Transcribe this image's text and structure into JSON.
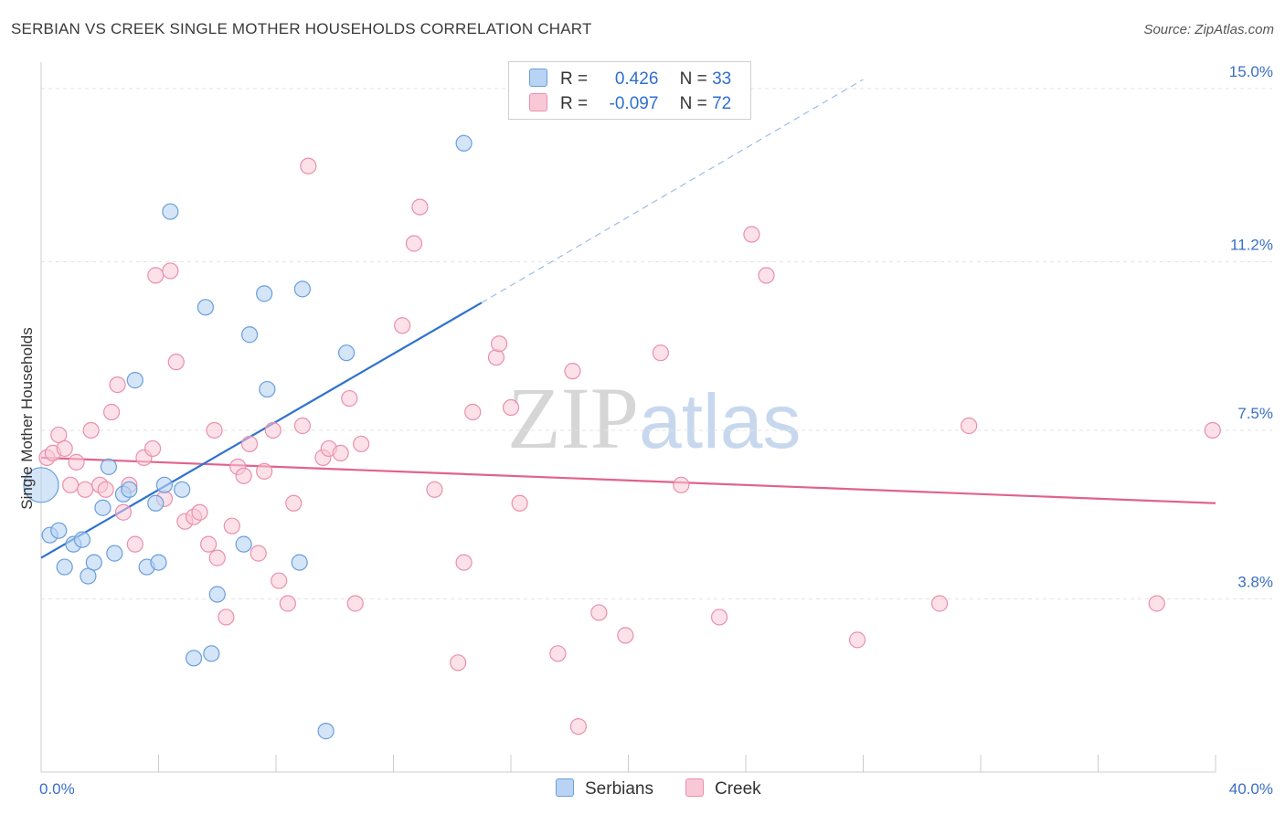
{
  "header": {
    "title": "SERBIAN VS CREEK SINGLE MOTHER HOUSEHOLDS CORRELATION CHART",
    "source": "Source: ZipAtlas.com"
  },
  "watermark": {
    "zip": "ZIP",
    "atlas": "atlas"
  },
  "colors": {
    "serbians_fill": "#b8d3f3",
    "serbians_stroke": "#6a9edc",
    "serbians_line": "#2f72cf",
    "creek_fill": "#f9c8d7",
    "creek_stroke": "#ea8fae",
    "creek_line": "#e0628f"
  },
  "legend": {
    "rows": [
      {
        "r_label": "R =",
        "r_value": " 0.426",
        "n_label": "N =",
        "n_value": "33"
      },
      {
        "r_label": "R =",
        "r_value": "-0.097",
        "n_label": "N =",
        "n_value": "72"
      }
    ]
  },
  "bottom_legend": [
    "Serbians",
    "Creek"
  ],
  "chart_data": {
    "type": "scatter",
    "title": "SERBIAN VS CREEK SINGLE MOTHER HOUSEHOLDS CORRELATION CHART",
    "xlabel": "",
    "ylabel": "Single Mother Households",
    "xlim": [
      0,
      40
    ],
    "ylim": [
      0,
      15.5
    ],
    "x_tick_labels": [
      "0.0%",
      "40.0%"
    ],
    "y_ticks": [
      3.8,
      7.5,
      11.2,
      15.0
    ],
    "y_tick_labels": [
      "3.8%",
      "7.5%",
      "11.2%",
      "15.0%"
    ],
    "grid": "horizontal dashed",
    "legend_position": "top-center",
    "series": [
      {
        "name": "Serbians",
        "r": 0.426,
        "n": 33,
        "trend": {
          "x0": 0,
          "y0": 4.7,
          "x1": 15,
          "y1": 10.3,
          "extend_to_x": 28,
          "extend_to_y": 15.2
        },
        "points": [
          [
            0.0,
            6.3
          ],
          [
            0.3,
            5.2
          ],
          [
            0.6,
            5.3
          ],
          [
            0.8,
            4.5
          ],
          [
            1.1,
            5.0
          ],
          [
            1.4,
            5.1
          ],
          [
            1.6,
            4.3
          ],
          [
            1.8,
            4.6
          ],
          [
            2.1,
            5.8
          ],
          [
            2.3,
            6.7
          ],
          [
            2.5,
            4.8
          ],
          [
            2.8,
            6.1
          ],
          [
            3.0,
            6.2
          ],
          [
            3.2,
            8.6
          ],
          [
            3.6,
            4.5
          ],
          [
            3.9,
            5.9
          ],
          [
            4.0,
            4.6
          ],
          [
            4.2,
            6.3
          ],
          [
            4.4,
            12.3
          ],
          [
            4.8,
            6.2
          ],
          [
            5.2,
            2.5
          ],
          [
            5.6,
            10.2
          ],
          [
            5.8,
            2.6
          ],
          [
            6.0,
            3.9
          ],
          [
            6.9,
            5.0
          ],
          [
            7.1,
            9.6
          ],
          [
            7.6,
            10.5
          ],
          [
            7.7,
            8.4
          ],
          [
            8.8,
            4.6
          ],
          [
            8.9,
            10.6
          ],
          [
            9.7,
            0.9
          ],
          [
            10.4,
            9.2
          ],
          [
            14.4,
            13.8
          ]
        ]
      },
      {
        "name": "Creek",
        "r": -0.097,
        "n": 72,
        "trend": {
          "x0": 0,
          "y0": 6.9,
          "x1": 40,
          "y1": 5.9
        },
        "points": [
          [
            0.2,
            6.9
          ],
          [
            0.4,
            7.0
          ],
          [
            0.6,
            7.4
          ],
          [
            0.8,
            7.1
          ],
          [
            1.0,
            6.3
          ],
          [
            1.2,
            6.8
          ],
          [
            1.5,
            6.2
          ],
          [
            1.7,
            7.5
          ],
          [
            2.0,
            6.3
          ],
          [
            2.2,
            6.2
          ],
          [
            2.4,
            7.9
          ],
          [
            2.6,
            8.5
          ],
          [
            2.8,
            5.7
          ],
          [
            3.0,
            6.3
          ],
          [
            3.2,
            5.0
          ],
          [
            3.5,
            6.9
          ],
          [
            3.8,
            7.1
          ],
          [
            3.9,
            10.9
          ],
          [
            4.2,
            6.0
          ],
          [
            4.4,
            11.0
          ],
          [
            4.6,
            9.0
          ],
          [
            4.9,
            5.5
          ],
          [
            5.2,
            5.6
          ],
          [
            5.4,
            5.7
          ],
          [
            5.7,
            5.0
          ],
          [
            5.9,
            7.5
          ],
          [
            6.0,
            4.7
          ],
          [
            6.3,
            3.4
          ],
          [
            6.5,
            5.4
          ],
          [
            6.7,
            6.7
          ],
          [
            6.9,
            6.5
          ],
          [
            7.1,
            7.2
          ],
          [
            7.4,
            4.8
          ],
          [
            7.6,
            6.6
          ],
          [
            7.9,
            7.5
          ],
          [
            8.1,
            4.2
          ],
          [
            8.4,
            3.7
          ],
          [
            8.6,
            5.9
          ],
          [
            8.9,
            7.6
          ],
          [
            9.1,
            13.3
          ],
          [
            9.6,
            6.9
          ],
          [
            9.8,
            7.1
          ],
          [
            10.2,
            7.0
          ],
          [
            10.5,
            8.2
          ],
          [
            10.7,
            3.7
          ],
          [
            10.9,
            7.2
          ],
          [
            12.3,
            9.8
          ],
          [
            12.7,
            11.6
          ],
          [
            12.9,
            12.4
          ],
          [
            13.4,
            6.2
          ],
          [
            14.2,
            2.4
          ],
          [
            14.4,
            4.6
          ],
          [
            14.7,
            7.9
          ],
          [
            15.5,
            9.1
          ],
          [
            15.6,
            9.4
          ],
          [
            16.0,
            8.0
          ],
          [
            16.3,
            5.9
          ],
          [
            17.6,
            2.6
          ],
          [
            18.1,
            8.8
          ],
          [
            18.3,
            1.0
          ],
          [
            19.0,
            3.5
          ],
          [
            19.9,
            3.0
          ],
          [
            21.1,
            9.2
          ],
          [
            21.8,
            6.3
          ],
          [
            23.1,
            3.4
          ],
          [
            24.2,
            11.8
          ],
          [
            24.7,
            10.9
          ],
          [
            27.8,
            2.9
          ],
          [
            30.6,
            3.7
          ],
          [
            31.6,
            7.6
          ],
          [
            38.0,
            3.7
          ],
          [
            39.9,
            7.5
          ]
        ]
      }
    ]
  }
}
